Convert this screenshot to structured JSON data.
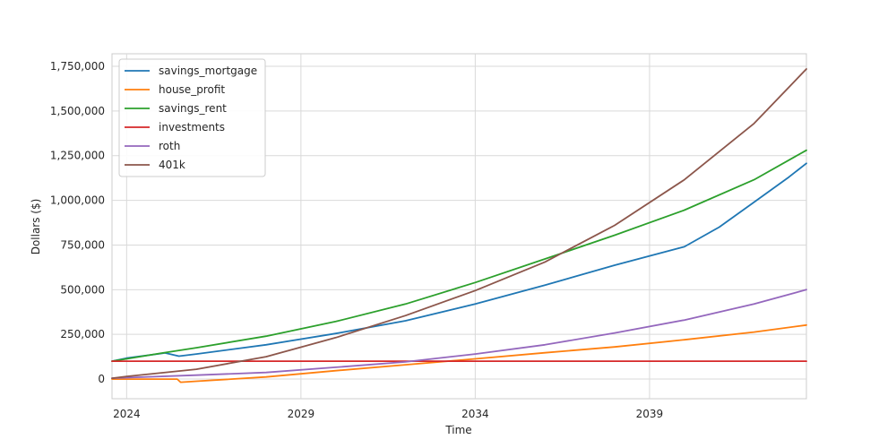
{
  "chart_data": {
    "type": "line",
    "title": "",
    "xlabel": "Time",
    "ylabel": "Dollars ($)",
    "x_ticks": [
      "2024",
      "2029",
      "2034",
      "2039"
    ],
    "x_tick_years": [
      2024,
      2029,
      2034,
      2039
    ],
    "xlim": [
      2023.58,
      2043.5
    ],
    "ylim": [
      -110000,
      1820000
    ],
    "y_ticks": [
      0,
      250000,
      500000,
      750000,
      1000000,
      1250000,
      1500000,
      1750000
    ],
    "y_tick_labels": [
      "0",
      "250,000",
      "500,000",
      "750,000",
      "1,000,000",
      "1,250,000",
      "1,500,000",
      "1,750,000"
    ],
    "grid": true,
    "legend_position": "top-left",
    "series": [
      {
        "name": "savings_mortgage",
        "color": "#1f77b4",
        "points": [
          [
            2023.58,
            100000
          ],
          [
            2024,
            117000
          ],
          [
            2025,
            143000
          ],
          [
            2025.1,
            146000
          ],
          [
            2025.5,
            128000
          ],
          [
            2026,
            140000
          ],
          [
            2028,
            192000
          ],
          [
            2030,
            255000
          ],
          [
            2032,
            326000
          ],
          [
            2034,
            420000
          ],
          [
            2036,
            525000
          ],
          [
            2038,
            637000
          ],
          [
            2040,
            740000
          ],
          [
            2041,
            850000
          ],
          [
            2042,
            990000
          ],
          [
            2043,
            1130000
          ],
          [
            2043.5,
            1207000
          ]
        ]
      },
      {
        "name": "house_profit",
        "color": "#ff7f0e",
        "points": [
          [
            2023.58,
            0
          ],
          [
            2025.45,
            0
          ],
          [
            2025.55,
            -18000
          ],
          [
            2026,
            -12000
          ],
          [
            2028,
            12000
          ],
          [
            2030,
            47000
          ],
          [
            2032,
            80000
          ],
          [
            2034,
            113000
          ],
          [
            2036,
            147000
          ],
          [
            2038,
            180000
          ],
          [
            2040,
            220000
          ],
          [
            2042,
            263000
          ],
          [
            2043.5,
            302000
          ]
        ]
      },
      {
        "name": "savings_rent",
        "color": "#2ca02c",
        "points": [
          [
            2023.58,
            100000
          ],
          [
            2024,
            113000
          ],
          [
            2025,
            145000
          ],
          [
            2026,
            175000
          ],
          [
            2028,
            240000
          ],
          [
            2030,
            322000
          ],
          [
            2032,
            420000
          ],
          [
            2034,
            540000
          ],
          [
            2036,
            672000
          ],
          [
            2038,
            805000
          ],
          [
            2040,
            945000
          ],
          [
            2042,
            1115000
          ],
          [
            2043.5,
            1280000
          ]
        ]
      },
      {
        "name": "investments",
        "color": "#d62728",
        "points": [
          [
            2023.58,
            100000
          ],
          [
            2043.5,
            100000
          ]
        ]
      },
      {
        "name": "roth",
        "color": "#9467bd",
        "points": [
          [
            2023.58,
            5000
          ],
          [
            2024,
            8000
          ],
          [
            2026,
            22000
          ],
          [
            2028,
            37000
          ],
          [
            2030,
            66000
          ],
          [
            2032,
            96000
          ],
          [
            2034,
            140000
          ],
          [
            2036,
            192000
          ],
          [
            2038,
            258000
          ],
          [
            2040,
            330000
          ],
          [
            2042,
            420000
          ],
          [
            2043.5,
            500000
          ]
        ]
      },
      {
        "name": "401k",
        "color": "#8c564b",
        "points": [
          [
            2023.58,
            5000
          ],
          [
            2024,
            15000
          ],
          [
            2026,
            55000
          ],
          [
            2028,
            125000
          ],
          [
            2030,
            232000
          ],
          [
            2032,
            355000
          ],
          [
            2034,
            495000
          ],
          [
            2036,
            655000
          ],
          [
            2038,
            860000
          ],
          [
            2040,
            1115000
          ],
          [
            2042,
            1430000
          ],
          [
            2043.5,
            1735000
          ]
        ]
      }
    ]
  }
}
